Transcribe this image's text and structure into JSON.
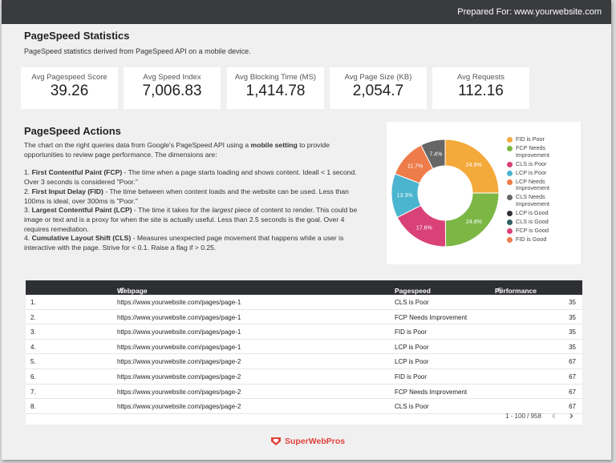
{
  "header": {
    "prepared_for": "Prepared For: www.yourwebsite.com"
  },
  "stats": {
    "title": "PageSpeed Statistics",
    "subtitle": "PageSpeed statistics derived from PageSpeed API on a mobile device.",
    "kpis": [
      {
        "label": "Avg Pagespeed Score",
        "value": "39.26"
      },
      {
        "label": "Avg Speed Index",
        "value": "7,006.83"
      },
      {
        "label": "Avg Blocking Time (MS)",
        "value": "1,414.78"
      },
      {
        "label": "Avg Page Size (KB)",
        "value": "2,054.7"
      },
      {
        "label": "Avg Requests",
        "value": "112.16"
      }
    ]
  },
  "actions": {
    "title": "PageSpeed Actions",
    "intro_pre": "The chart on the right queries data from Google's PageSpeed API using a ",
    "intro_bold": "mobile setting",
    "intro_post": " to provide opportunities to review page performance. The dimensions are:",
    "items": [
      {
        "num": "1. ",
        "bold": "First Contentful Paint (FCP)",
        "text": " - The time when a page starts loading and shows content. Ideall < 1 second. Over 3 seconds is considered \"Poor.\""
      },
      {
        "num": "2. ",
        "bold": "First Input Delay (FID)",
        "text": " - The time between when content loads and the website can be used. Less than 100ms is ideal, over 300ms is \"Poor.\""
      },
      {
        "num": "3. ",
        "bold": "Largest Contentful Paint (LCP)",
        "text_pre": " - The time it takes for the ",
        "italic": "largest",
        "text": " piece of content to render. This could be image or text and is a proxy for when the site is actually useful. Less than 2.5 seconds is the goal. Over 4 requires remediation."
      },
      {
        "num": "4. ",
        "bold": "Cumulative Layout Shift (CLS)",
        "text": " - Measures unexpected page movement that happens while a user is interactive with the page. Strive for < 0.1. Raise a flag if > 0.25."
      }
    ]
  },
  "chart_data": {
    "type": "pie",
    "donut": true,
    "slices": [
      {
        "label": "FID is Poor",
        "value": 24.9,
        "text": "24.9%",
        "color": "#f4a93b"
      },
      {
        "label": "FCP Needs Improvement",
        "value": 24.8,
        "text": "24.8%",
        "color": "#7cb746"
      },
      {
        "label": "CLS is Poor",
        "value": 17.6,
        "text": "17.6%",
        "color": "#d94277"
      },
      {
        "label": "LCP is Poor",
        "value": 13.3,
        "text": "13.3%",
        "color": "#4bb4cf"
      },
      {
        "label": "LCP Needs Improvement",
        "value": 11.7,
        "text": "11.7%",
        "color": "#ee7c4a"
      },
      {
        "label": "CLS Needs Improvement",
        "value": 7.4,
        "text": "7.4%",
        "color": "#666666"
      }
    ],
    "legend": [
      {
        "label": "FID is Poor",
        "color": "#f4a93b"
      },
      {
        "label": "FCP Needs Improvement",
        "color": "#7cb746"
      },
      {
        "label": "CLS is Poor",
        "color": "#d94277"
      },
      {
        "label": "LCP is Poor",
        "color": "#4bb4cf"
      },
      {
        "label": "LCP Needs Improvement",
        "color": "#ee7c4a"
      },
      {
        "label": "CLS Needs Improvement",
        "color": "#666666"
      },
      {
        "label": "LCP is Good",
        "color": "#2e3136"
      },
      {
        "label": "CLS is Good",
        "color": "#2f5f63"
      },
      {
        "label": "FCP is Good",
        "color": "#d94277"
      },
      {
        "label": "FID is Good",
        "color": "#ee7c4a"
      }
    ],
    "legend_position": "right"
  },
  "table": {
    "columns": {
      "webpage": "Webpage",
      "action": "Pagespeed Action",
      "score": "Performance Score"
    },
    "info_icon": "ⓘ",
    "sort_icon": "▾",
    "rows": [
      {
        "num": "1.",
        "url": "https://www.yourwebsite.com/pages/page-1",
        "action": "CLS is Poor",
        "score": "35"
      },
      {
        "num": "2.",
        "url": "https://www.yourwebsite.com/pages/page-1",
        "action": "FCP Needs Improvement",
        "score": "35"
      },
      {
        "num": "3.",
        "url": "https://www.yourwebsite.com/pages/page-1",
        "action": "FID is Poor",
        "score": "35"
      },
      {
        "num": "4.",
        "url": "https://www.yourwebsite.com/pages/page-1",
        "action": "LCP is Poor",
        "score": "35"
      },
      {
        "num": "5.",
        "url": "https://www.yourwebsite.com/pages/page-2",
        "action": "LCP is Poor",
        "score": "67"
      },
      {
        "num": "6.",
        "url": "https://www.yourwebsite.com/pages/page-2",
        "action": "FID is Poor",
        "score": "67"
      },
      {
        "num": "7.",
        "url": "https://www.yourwebsite.com/pages/page-2",
        "action": "FCP Needs Improvement",
        "score": "67"
      },
      {
        "num": "8.",
        "url": "https://www.yourwebsite.com/pages/page-2",
        "action": "CLS is Poor",
        "score": "67"
      }
    ],
    "pagination": "1 - 100 / 958",
    "prev_icon": "‹",
    "next_icon": "›"
  },
  "footer": {
    "brand": "SuperWebPros",
    "brand_color": "#e2413c"
  }
}
